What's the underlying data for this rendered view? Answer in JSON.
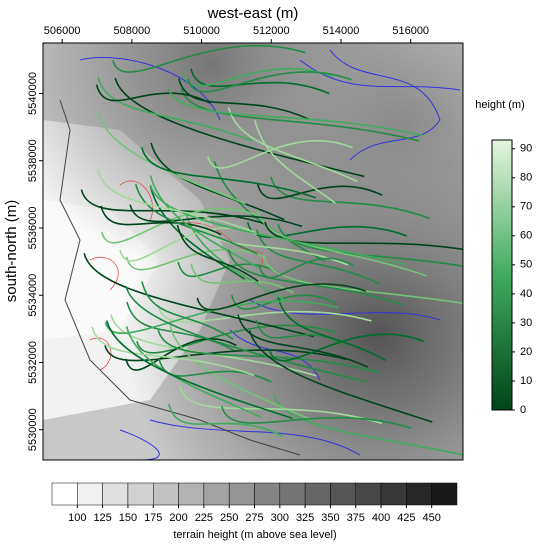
{
  "map": {
    "x_axis": {
      "title": "west-east (m)",
      "lim": [
        505450,
        517500
      ],
      "ticks": [
        506000,
        508000,
        510000,
        512000,
        514000,
        516000
      ]
    },
    "y_axis": {
      "title": "south-north (m)",
      "lim": [
        5529100,
        5541500
      ],
      "ticks": [
        5530000,
        5532000,
        5534000,
        5536000,
        5538000,
        5540000
      ]
    },
    "height_colorbar": {
      "title": "height (m)",
      "lim": [
        0,
        93
      ],
      "ticks": [
        0,
        10,
        20,
        30,
        40,
        50,
        60,
        70,
        80,
        90
      ]
    },
    "terrain_colorbar": {
      "title": "terrain height (m above sea level)",
      "levels": [
        100,
        125,
        150,
        175,
        200,
        225,
        250,
        275,
        300,
        325,
        350,
        375,
        400,
        425,
        450
      ]
    }
  }
}
